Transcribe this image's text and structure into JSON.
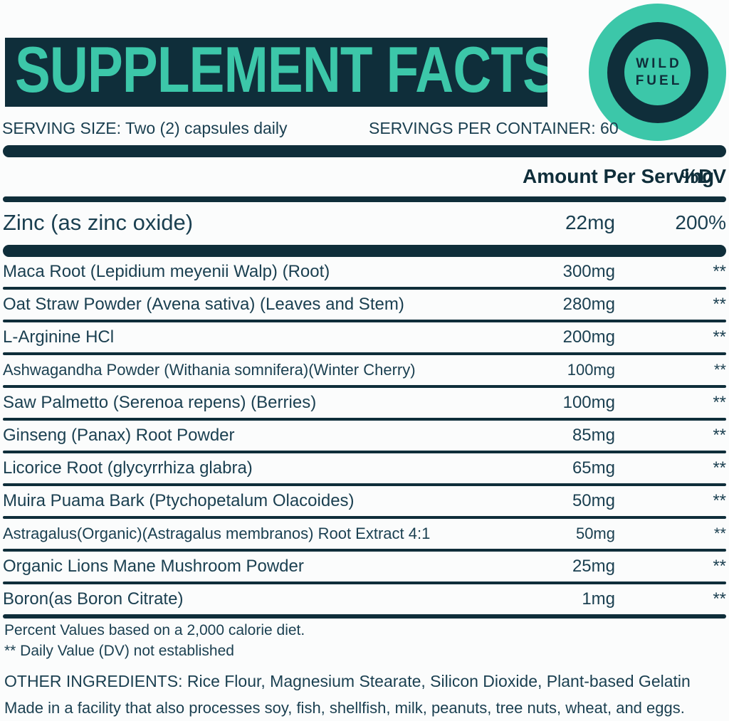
{
  "header": {
    "title": "SUPPLEMENT FACTS"
  },
  "logo": {
    "line1": "WILD",
    "line2": "FUEL"
  },
  "serving": {
    "size": "SERVING SIZE: Two (2) capsules daily",
    "per_container": "SERVINGS PER CONTAINER: 60"
  },
  "columns": {
    "amount": "Amount Per Serving",
    "dv": "%DV"
  },
  "primary_row": {
    "name": "Zinc (as zinc oxide)",
    "amount": "22mg",
    "dv": "200%"
  },
  "ingredients": [
    {
      "name": "Maca Root (Lepidium meyenii Walp) (Root)",
      "amount": "300mg",
      "dv": "**"
    },
    {
      "name": "Oat Straw Powder (Avena sativa) (Leaves and Stem)",
      "amount": "280mg",
      "dv": "**"
    },
    {
      "name": "L-Arginine HCl",
      "amount": "200mg",
      "dv": "**"
    },
    {
      "name": "Ashwagandha Powder (Withania somnifera)(Winter Cherry)",
      "amount": "100mg",
      "dv": "**"
    },
    {
      "name": "Saw Palmetto (Serenoa repens) (Berries)",
      "amount": "100mg",
      "dv": "**"
    },
    {
      "name": "Ginseng (Panax) Root Powder",
      "amount": "85mg",
      "dv": "**"
    },
    {
      "name": "Licorice Root (glycyrrhiza glabra)",
      "amount": "65mg",
      "dv": "**"
    },
    {
      "name": "Muira Puama Bark (Ptychopetalum Olacoides)",
      "amount": "50mg",
      "dv": "**"
    },
    {
      "name": "Astragalus(Organic)(Astragalus membranos) Root Extract 4:1",
      "amount": "50mg",
      "dv": "**"
    },
    {
      "name": "Organic Lions Mane Mushroom Powder",
      "amount": "25mg",
      "dv": "**"
    },
    {
      "name": "Boron(as Boron Citrate)",
      "amount": "1mg",
      "dv": "**"
    }
  ],
  "footnotes": {
    "percent_values": "Percent Values based on a 2,000 calorie diet.",
    "daily_value": "** Daily Value (DV) not established",
    "other_ingredients": "OTHER INGREDIENTS: Rice Flour, Magnesium Stearate, Silicon Dioxide, Plant-based Gelatin",
    "facility": "Made in a facility that also processes soy, fish, shellfish, milk, peanuts, tree nuts, wheat, and eggs."
  },
  "colors": {
    "navy": "#0f2e3a",
    "teal": "#3cc7a9",
    "text": "#1a3f50",
    "background": "#fbfcfc"
  }
}
